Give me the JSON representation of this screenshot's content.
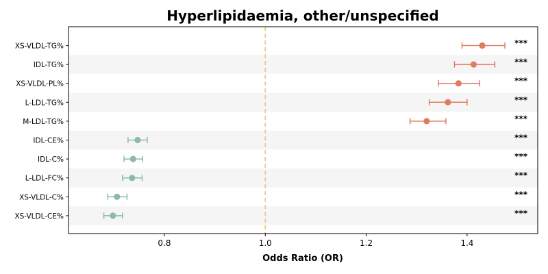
{
  "chart_data": {
    "type": "scatter",
    "subtype": "forest-plot",
    "title": "Hyperlipidaemia, other/unspecified",
    "xlabel": "Odds Ratio (OR)",
    "ylabel": "",
    "xlim": [
      0.61,
      1.54
    ],
    "xticks": [
      0.8,
      1.0,
      1.2,
      1.4
    ],
    "xtick_labels": [
      "0.8",
      "1.0",
      "1.2",
      "1.4"
    ],
    "reference_line": 1.0,
    "reference_color": "#f0c27b",
    "row_band_color": "#f5f5f5",
    "grid": false,
    "legend": "none",
    "colors": {
      "above": "#e07b5f",
      "below": "#8bbca3"
    },
    "rows": [
      {
        "label": "XS-VLDL-TG%",
        "or": 1.43,
        "ci_low": 1.39,
        "ci_high": 1.475,
        "sig": "***"
      },
      {
        "label": "IDL-TG%",
        "or": 1.413,
        "ci_low": 1.375,
        "ci_high": 1.455,
        "sig": "***"
      },
      {
        "label": "XS-VLDL-PL%",
        "or": 1.383,
        "ci_low": 1.343,
        "ci_high": 1.425,
        "sig": "***"
      },
      {
        "label": "L-LDL-TG%",
        "or": 1.362,
        "ci_low": 1.325,
        "ci_high": 1.4,
        "sig": "***"
      },
      {
        "label": "M-LDL-TG%",
        "or": 1.32,
        "ci_low": 1.287,
        "ci_high": 1.358,
        "sig": "***"
      },
      {
        "label": "IDL-CE%",
        "or": 0.747,
        "ci_low": 0.728,
        "ci_high": 0.766,
        "sig": "***"
      },
      {
        "label": "IDL-C%",
        "or": 0.738,
        "ci_low": 0.72,
        "ci_high": 0.757,
        "sig": "***"
      },
      {
        "label": "L-LDL-FC%",
        "or": 0.736,
        "ci_low": 0.717,
        "ci_high": 0.756,
        "sig": "***"
      },
      {
        "label": "XS-VLDL-C%",
        "or": 0.706,
        "ci_low": 0.688,
        "ci_high": 0.726,
        "sig": "***"
      },
      {
        "label": "XS-VLDL-CE%",
        "or": 0.698,
        "ci_low": 0.68,
        "ci_high": 0.717,
        "sig": "***"
      }
    ]
  }
}
